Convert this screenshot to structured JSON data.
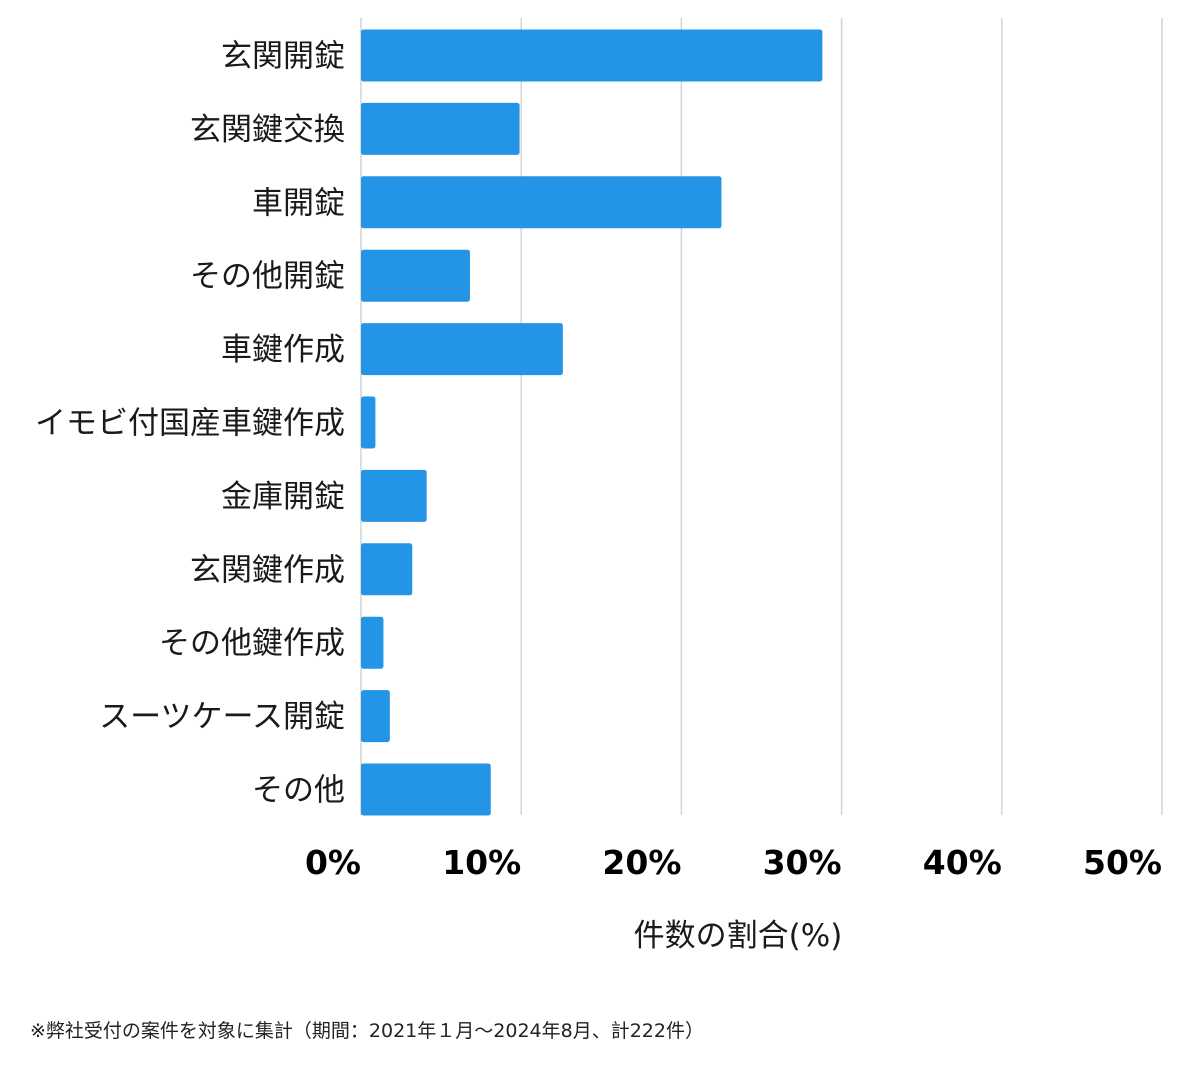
{
  "chart_data": {
    "type": "bar",
    "orientation": "horizontal",
    "categories": [
      "玄関開錠",
      "玄関鍵交換",
      "車開錠",
      "その他開錠",
      "車鍵作成",
      "イモビ付国産車鍵作成",
      "金庫開錠",
      "玄関鍵作成",
      "その他鍵作成",
      "スーツケース開錠",
      "その他"
    ],
    "values": [
      28.8,
      9.9,
      22.5,
      6.8,
      12.6,
      0.9,
      4.1,
      3.2,
      1.4,
      1.8,
      8.1
    ],
    "xlabel": "件数の割合(%)",
    "ylabel": "",
    "xlim": [
      0,
      50
    ],
    "xticks": [
      "0%",
      "10%",
      "20%",
      "30%",
      "40%",
      "50%"
    ],
    "grid": true,
    "bar_color": "#2394e6",
    "grid_color": "#d4d4d4"
  },
  "footnote": "※弊社受付の案件を対象に集計（期間：2021年１月〜2024年8月、計222件）"
}
